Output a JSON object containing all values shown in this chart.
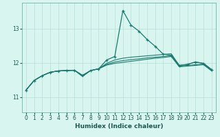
{
  "xlabel": "Humidex (Indice chaleur)",
  "bg_color": "#d8f5f0",
  "grid_color": "#b8ddd8",
  "line_color": "#1a7a6e",
  "x_ticks": [
    0,
    1,
    2,
    3,
    4,
    5,
    6,
    7,
    8,
    9,
    10,
    11,
    12,
    13,
    14,
    15,
    16,
    17,
    18,
    19,
    20,
    21,
    22,
    23
  ],
  "y_ticks": [
    11,
    12,
    13
  ],
  "ylim": [
    10.55,
    13.75
  ],
  "xlim": [
    -0.5,
    23.5
  ],
  "line_spike": [
    11.2,
    11.48,
    11.62,
    11.72,
    11.76,
    11.77,
    11.78,
    11.63,
    11.77,
    11.82,
    12.08,
    12.18,
    13.52,
    13.1,
    12.92,
    12.68,
    12.48,
    12.25,
    12.22,
    11.92,
    11.95,
    12.02,
    11.98,
    11.8
  ],
  "line_mid1": [
    11.2,
    11.48,
    11.62,
    11.72,
    11.76,
    11.77,
    11.78,
    11.63,
    11.77,
    11.82,
    11.98,
    12.08,
    12.13,
    12.16,
    12.18,
    12.2,
    12.22,
    12.24,
    12.26,
    11.92,
    11.95,
    12.02,
    11.98,
    11.8
  ],
  "line_mid2": [
    11.2,
    11.48,
    11.62,
    11.72,
    11.76,
    11.77,
    11.78,
    11.6,
    11.77,
    11.82,
    11.95,
    12.02,
    12.06,
    12.09,
    12.11,
    12.14,
    12.16,
    12.18,
    12.21,
    11.9,
    11.92,
    11.94,
    11.96,
    11.78
  ],
  "line_flat": [
    11.2,
    11.48,
    11.62,
    11.72,
    11.76,
    11.77,
    11.78,
    11.6,
    11.77,
    11.82,
    11.93,
    11.98,
    12.01,
    12.04,
    12.07,
    12.1,
    12.13,
    12.15,
    12.18,
    11.88,
    11.9,
    11.92,
    11.94,
    11.76
  ]
}
